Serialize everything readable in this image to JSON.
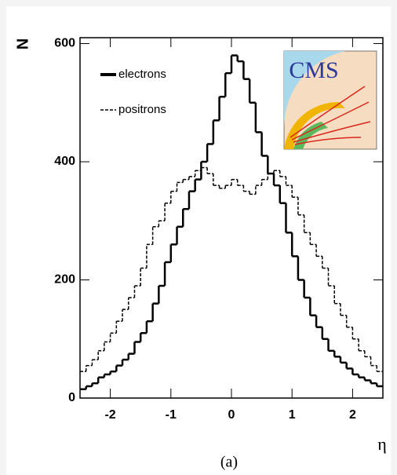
{
  "chart_data": {
    "type": "histogram",
    "ylabel": "N",
    "xlabel": "η",
    "caption": "(a)",
    "annotations": [
      "CMS"
    ],
    "bins": [
      -2.5,
      -2.4,
      -2.3,
      -2.2,
      -2.1,
      -2.0,
      -1.9,
      -1.8,
      -1.7,
      -1.6,
      -1.5,
      -1.4,
      -1.3,
      -1.2,
      -1.1,
      -1.0,
      -0.9,
      -0.8,
      -0.7,
      -0.6,
      -0.5,
      -0.4,
      -0.3,
      -0.2,
      -0.1,
      0.0,
      0.1,
      0.2,
      0.3,
      0.4,
      0.5,
      0.6,
      0.7,
      0.8,
      0.9,
      1.0,
      1.1,
      1.2,
      1.3,
      1.4,
      1.5,
      1.6,
      1.7,
      1.8,
      1.9,
      2.0,
      2.1,
      2.2,
      2.3,
      2.4,
      2.5
    ],
    "series": [
      {
        "name": "electrons",
        "color": "#000000",
        "style": "solid",
        "values": [
          15,
          20,
          25,
          35,
          40,
          45,
          55,
          65,
          75,
          95,
          110,
          130,
          160,
          190,
          230,
          260,
          290,
          320,
          350,
          370,
          400,
          430,
          470,
          510,
          550,
          580,
          570,
          540,
          500,
          450,
          410,
          380,
          360,
          330,
          280,
          240,
          200,
          170,
          140,
          120,
          100,
          80,
          70,
          60,
          50,
          40,
          35,
          30,
          25,
          20
        ]
      },
      {
        "name": "positrons",
        "color": "#000000",
        "style": "dashed",
        "values": [
          45,
          55,
          65,
          80,
          95,
          110,
          130,
          150,
          170,
          190,
          220,
          260,
          290,
          300,
          330,
          350,
          365,
          370,
          375,
          385,
          390,
          380,
          360,
          355,
          360,
          370,
          360,
          350,
          345,
          360,
          370,
          380,
          385,
          375,
          360,
          340,
          310,
          280,
          260,
          240,
          220,
          190,
          160,
          140,
          120,
          100,
          80,
          70,
          55,
          45
        ]
      }
    ],
    "xlim": [
      -2.5,
      2.5
    ],
    "ylim": [
      0,
      610
    ],
    "xticks": [
      -2,
      -1,
      0,
      1,
      2
    ],
    "yticks": [
      0,
      200,
      400,
      600
    ]
  }
}
